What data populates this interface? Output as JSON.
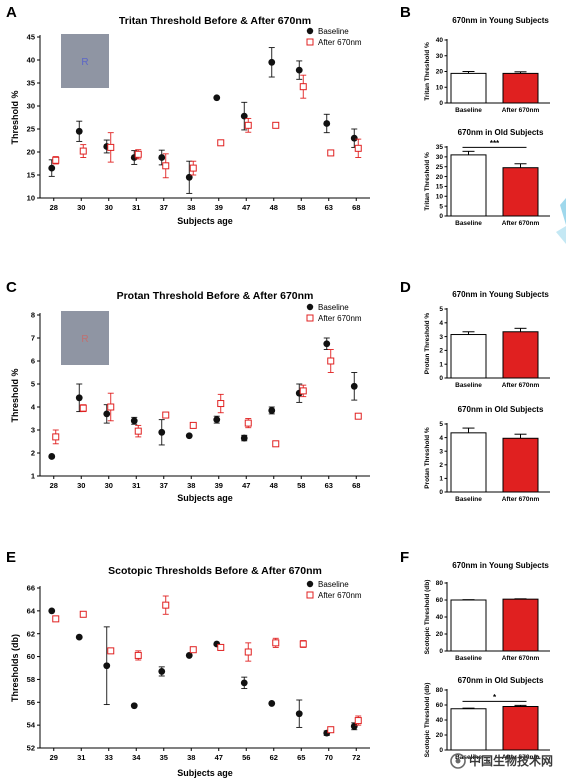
{
  "panel_letters": [
    "A",
    "B",
    "C",
    "D",
    "E",
    "F"
  ],
  "colors": {
    "baseline": "#111111",
    "after": "#e02020",
    "inset": "#8f95a3",
    "inset_dark": "#7f8594"
  },
  "watermark": "中国生物技术网",
  "chart_data": [
    {
      "id": "A",
      "type": "scatter",
      "title": "Tritan Threshold Before & After 670nm",
      "xlabel": "Subjects age",
      "ylabel": "Threshold %",
      "ylim": [
        10,
        45
      ],
      "yticks": [
        10,
        15,
        20,
        25,
        30,
        35,
        40,
        45
      ],
      "categories": [
        "28",
        "30",
        "30",
        "31",
        "37",
        "38",
        "39",
        "47",
        "48",
        "58",
        "63",
        "68"
      ],
      "legend": [
        "Baseline",
        "After 670nm"
      ],
      "legend_position": "top-right",
      "inset_letter": "R",
      "series": [
        {
          "name": "Baseline",
          "marker": "filled-circle",
          "values": [
            16.5,
            24.5,
            21.2,
            18.8,
            18.8,
            14.5,
            31.8,
            27.8,
            39.5,
            37.8,
            26.2,
            23.0
          ],
          "errors": [
            1.8,
            2.2,
            1.4,
            1.5,
            1.6,
            3.5,
            0,
            3.0,
            3.2,
            2.0,
            2.0,
            2.0
          ]
        },
        {
          "name": "After 670nm",
          "marker": "open-square",
          "values": [
            18.2,
            20.2,
            21.0,
            19.5,
            17.0,
            16.5,
            22.0,
            25.8,
            25.8,
            34.2,
            19.8,
            20.8
          ],
          "errors": [
            0.8,
            1.4,
            3.2,
            1.0,
            2.6,
            1.5,
            0,
            1.5,
            0,
            2.5,
            0,
            2.0
          ]
        }
      ]
    },
    {
      "id": "B-young",
      "type": "bar",
      "title": "670nm in Young Subjects",
      "ylabel": "Tritan Threshold %",
      "categories": [
        "Baseline",
        "After 670nm"
      ],
      "values": [
        18.8,
        18.8
      ],
      "errors": [
        1.2,
        1.0
      ],
      "ylim": [
        0,
        40
      ],
      "yticks": [
        0,
        10,
        20,
        30,
        40
      ]
    },
    {
      "id": "B-old",
      "type": "bar",
      "title": "670nm in Old Subjects",
      "ylabel": "Tritan Threshold %",
      "categories": [
        "Baseline",
        "After 670nm"
      ],
      "values": [
        31.0,
        24.5
      ],
      "errors": [
        1.8,
        2.0
      ],
      "ylim": [
        0,
        35
      ],
      "yticks": [
        0,
        5,
        10,
        15,
        20,
        25,
        30,
        35
      ],
      "significance": "***"
    },
    {
      "id": "C",
      "type": "scatter",
      "title": "Protan Threshold Before & After 670nm",
      "xlabel": "Subjects age",
      "ylabel": "Threshold %",
      "ylim": [
        1,
        8
      ],
      "yticks": [
        1,
        2,
        3,
        4,
        5,
        6,
        7,
        8
      ],
      "categories": [
        "28",
        "30",
        "30",
        "31",
        "37",
        "38",
        "39",
        "47",
        "48",
        "58",
        "63",
        "68"
      ],
      "legend": [
        "Baseline",
        "After 670nm"
      ],
      "legend_position": "top-right",
      "inset_letter": "R",
      "series": [
        {
          "name": "Baseline",
          "marker": "filled-circle",
          "values": [
            1.85,
            4.4,
            3.7,
            3.4,
            2.9,
            2.75,
            3.45,
            2.65,
            3.85,
            4.6,
            6.75,
            4.9
          ],
          "errors": [
            0,
            0.6,
            0.4,
            0.15,
            0.55,
            0,
            0.15,
            0.12,
            0.15,
            0.4,
            0.25,
            0.6
          ]
        },
        {
          "name": "After 670nm",
          "marker": "open-square",
          "values": [
            2.7,
            3.95,
            4.0,
            2.95,
            3.65,
            3.2,
            4.15,
            3.3,
            2.4,
            4.7,
            6.0,
            3.6
          ],
          "errors": [
            0.3,
            0.15,
            0.6,
            0.25,
            0,
            0,
            0.4,
            0.2,
            0,
            0.25,
            0.5,
            0
          ]
        }
      ]
    },
    {
      "id": "D-young",
      "type": "bar",
      "title": "670nm in Young Subjects",
      "ylabel": "Protan Threshold %",
      "categories": [
        "Baseline",
        "After 670nm"
      ],
      "values": [
        3.15,
        3.35
      ],
      "errors": [
        0.2,
        0.25
      ],
      "ylim": [
        0,
        5
      ],
      "yticks": [
        0,
        1,
        2,
        3,
        4,
        5
      ]
    },
    {
      "id": "D-old",
      "type": "bar",
      "title": "670nm in Old Subjects",
      "ylabel": "Protan Threshold %",
      "categories": [
        "Baseline",
        "After 670nm"
      ],
      "values": [
        4.35,
        3.95
      ],
      "errors": [
        0.35,
        0.3
      ],
      "ylim": [
        0,
        5
      ],
      "yticks": [
        0,
        1,
        2,
        3,
        4,
        5
      ]
    },
    {
      "id": "E",
      "type": "scatter",
      "title": "Scotopic Thresholds Before & After 670nm",
      "xlabel": "Subjects age",
      "ylabel": "Thresholds (db)",
      "ylim": [
        52,
        66
      ],
      "yticks": [
        52,
        54,
        56,
        58,
        60,
        62,
        64,
        66
      ],
      "categories": [
        "29",
        "31",
        "33",
        "34",
        "35",
        "38",
        "47",
        "56",
        "62",
        "65",
        "70",
        "72"
      ],
      "legend": [
        "Baseline",
        "After 670nm"
      ],
      "legend_position": "top-right",
      "series": [
        {
          "name": "Baseline",
          "marker": "filled-circle",
          "values": [
            64.0,
            61.7,
            59.2,
            55.7,
            58.7,
            60.1,
            61.1,
            57.7,
            55.9,
            55.0,
            53.3,
            53.9
          ],
          "errors": [
            0,
            0,
            3.4,
            0,
            0.4,
            0,
            0,
            0.5,
            0,
            1.2,
            0.2,
            0.3
          ]
        },
        {
          "name": "After 670nm",
          "marker": "open-square",
          "values": [
            63.3,
            63.7,
            60.5,
            60.1,
            64.5,
            60.6,
            60.8,
            60.4,
            61.2,
            61.1,
            53.6,
            54.4
          ],
          "errors": [
            0,
            0,
            0,
            0.4,
            0.8,
            0,
            0,
            0.8,
            0.4,
            0.3,
            0,
            0.4
          ]
        }
      ]
    },
    {
      "id": "F-young",
      "type": "bar",
      "title": "670nm in Young Subjects",
      "ylabel": "Scotopic Threshold (db)",
      "categories": [
        "Baseline",
        "After 670nm"
      ],
      "values": [
        60.0,
        61.0
      ],
      "errors": [
        0.4,
        0.4
      ],
      "ylim": [
        0,
        80
      ],
      "yticks": [
        0,
        20,
        40,
        60,
        80
      ]
    },
    {
      "id": "F-old",
      "type": "bar",
      "title": "670nm in Old Subjects",
      "ylabel": "Scotopic Threshold (db)",
      "categories": [
        "Baseline",
        "After 670nm"
      ],
      "values": [
        55.0,
        58.0
      ],
      "errors": [
        0.8,
        1.5
      ],
      "ylim": [
        0,
        80
      ],
      "yticks": [
        0,
        20,
        40,
        60,
        80
      ],
      "significance": "*"
    }
  ]
}
